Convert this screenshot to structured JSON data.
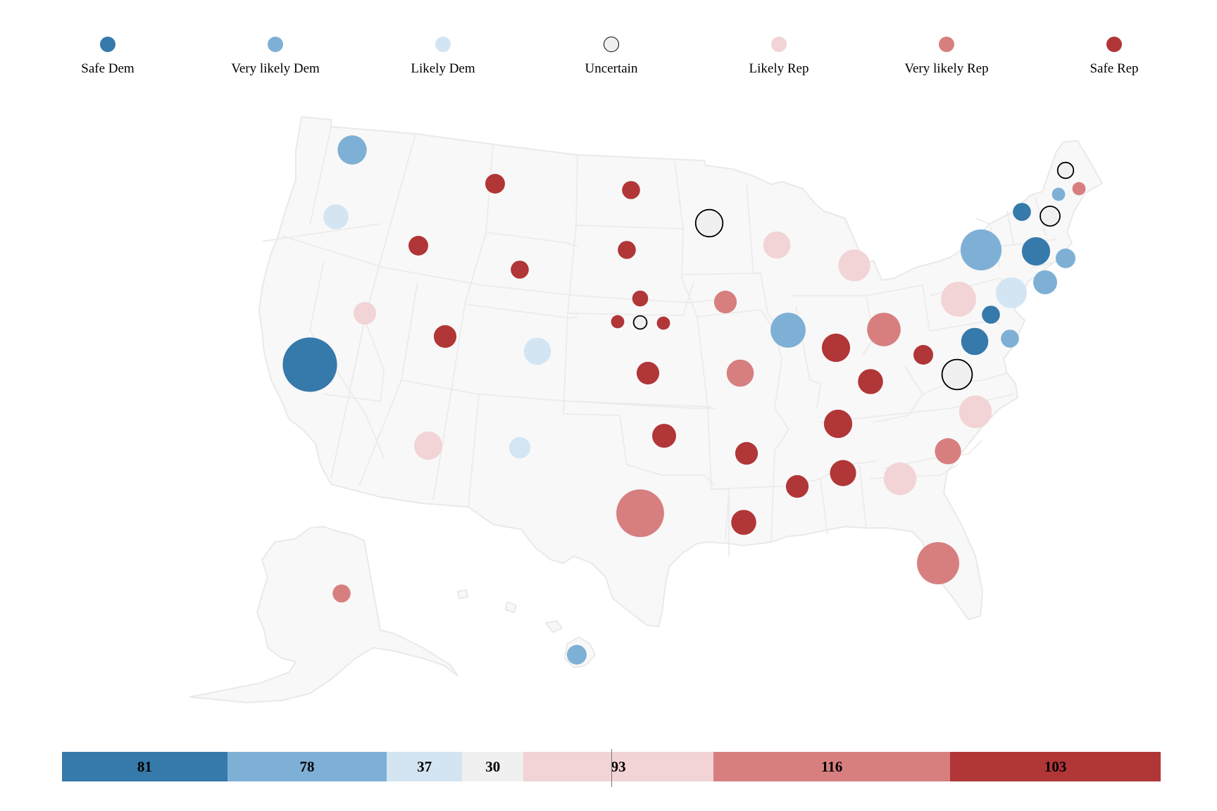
{
  "legend": [
    {
      "key": "safe_dem",
      "label": "Safe Dem",
      "color": "#3679ab"
    },
    {
      "key": "very_likely_dem",
      "label": "Very likely Dem",
      "color": "#7eb0d6"
    },
    {
      "key": "likely_dem",
      "label": "Likely Dem",
      "color": "#d3e5f3"
    },
    {
      "key": "uncertain",
      "label": "Uncertain",
      "color": "#f0f0f0",
      "stroke": "#000000"
    },
    {
      "key": "likely_rep",
      "label": "Likely Rep",
      "color": "#f2d4d6"
    },
    {
      "key": "very_likely_rep",
      "label": "Very likely Rep",
      "color": "#d77f7f"
    },
    {
      "key": "safe_rep",
      "label": "Safe Rep",
      "color": "#b13637"
    }
  ],
  "summary_bar": {
    "segments": [
      {
        "key": "safe_dem",
        "value": 81
      },
      {
        "key": "very_likely_dem",
        "value": 78
      },
      {
        "key": "likely_dem",
        "value": 37
      },
      {
        "key": "uncertain",
        "value": 30
      },
      {
        "key": "likely_rep",
        "value": 93
      },
      {
        "key": "very_likely_rep",
        "value": 116
      },
      {
        "key": "safe_rep",
        "value": 103
      }
    ],
    "total": 538,
    "majority_line": 269
  },
  "chart_data": {
    "type": "map",
    "title": "",
    "encoding": "circle per state/district, sized by electoral votes, colored by rating",
    "states": [
      {
        "id": "WA",
        "rating": "very_likely_dem",
        "ev": 12
      },
      {
        "id": "OR",
        "rating": "likely_dem",
        "ev": 8
      },
      {
        "id": "CA",
        "rating": "safe_dem",
        "ev": 54
      },
      {
        "id": "NV",
        "rating": "likely_rep",
        "ev": 6
      },
      {
        "id": "ID",
        "rating": "safe_rep",
        "ev": 4
      },
      {
        "id": "MT",
        "rating": "safe_rep",
        "ev": 4
      },
      {
        "id": "WY",
        "rating": "safe_rep",
        "ev": 3
      },
      {
        "id": "UT",
        "rating": "safe_rep",
        "ev": 6
      },
      {
        "id": "CO",
        "rating": "likely_dem",
        "ev": 10
      },
      {
        "id": "AZ",
        "rating": "likely_rep",
        "ev": 11
      },
      {
        "id": "NM",
        "rating": "likely_dem",
        "ev": 5
      },
      {
        "id": "ND",
        "rating": "safe_rep",
        "ev": 3
      },
      {
        "id": "SD",
        "rating": "safe_rep",
        "ev": 3
      },
      {
        "id": "NE",
        "rating": "safe_rep",
        "ev": 2
      },
      {
        "id": "NE-1",
        "rating": "safe_rep",
        "ev": 1
      },
      {
        "id": "NE-2",
        "rating": "uncertain",
        "ev": 1
      },
      {
        "id": "NE-3",
        "rating": "safe_rep",
        "ev": 1
      },
      {
        "id": "KS",
        "rating": "safe_rep",
        "ev": 6
      },
      {
        "id": "OK",
        "rating": "safe_rep",
        "ev": 7
      },
      {
        "id": "TX",
        "rating": "very_likely_rep",
        "ev": 40
      },
      {
        "id": "MN",
        "rating": "uncertain",
        "ev": 10
      },
      {
        "id": "IA",
        "rating": "very_likely_rep",
        "ev": 6
      },
      {
        "id": "MO",
        "rating": "very_likely_rep",
        "ev": 10
      },
      {
        "id": "AR",
        "rating": "safe_rep",
        "ev": 6
      },
      {
        "id": "LA",
        "rating": "safe_rep",
        "ev": 8
      },
      {
        "id": "WI",
        "rating": "likely_rep",
        "ev": 10
      },
      {
        "id": "IL",
        "rating": "very_likely_dem",
        "ev": 19
      },
      {
        "id": "MI",
        "rating": "likely_rep",
        "ev": 15
      },
      {
        "id": "IN",
        "rating": "safe_rep",
        "ev": 11
      },
      {
        "id": "OH",
        "rating": "very_likely_rep",
        "ev": 17
      },
      {
        "id": "KY",
        "rating": "safe_rep",
        "ev": 8
      },
      {
        "id": "TN",
        "rating": "safe_rep",
        "ev": 11
      },
      {
        "id": "MS",
        "rating": "safe_rep",
        "ev": 6
      },
      {
        "id": "AL",
        "rating": "safe_rep",
        "ev": 9
      },
      {
        "id": "GA",
        "rating": "likely_rep",
        "ev": 16
      },
      {
        "id": "FL",
        "rating": "very_likely_rep",
        "ev": 30
      },
      {
        "id": "SC",
        "rating": "very_likely_rep",
        "ev": 9
      },
      {
        "id": "NC",
        "rating": "likely_rep",
        "ev": 16
      },
      {
        "id": "VA",
        "rating": "uncertain",
        "ev": 13
      },
      {
        "id": "WV",
        "rating": "safe_rep",
        "ev": 4
      },
      {
        "id": "PA",
        "rating": "likely_rep",
        "ev": 19
      },
      {
        "id": "NY",
        "rating": "very_likely_dem",
        "ev": 28
      },
      {
        "id": "NJ",
        "rating": "likely_dem",
        "ev": 14
      },
      {
        "id": "DE",
        "rating": "very_likely_dem",
        "ev": 3
      },
      {
        "id": "MD",
        "rating": "safe_dem",
        "ev": 10
      },
      {
        "id": "DC",
        "rating": "safe_dem",
        "ev": 3
      },
      {
        "id": "CT",
        "rating": "very_likely_dem",
        "ev": 7
      },
      {
        "id": "RI",
        "rating": "very_likely_dem",
        "ev": 4
      },
      {
        "id": "MA",
        "rating": "safe_dem",
        "ev": 11
      },
      {
        "id": "VT",
        "rating": "safe_dem",
        "ev": 3
      },
      {
        "id": "NH",
        "rating": "uncertain",
        "ev": 4
      },
      {
        "id": "ME",
        "rating": "uncertain",
        "ev": 2
      },
      {
        "id": "ME-1",
        "rating": "very_likely_dem",
        "ev": 1
      },
      {
        "id": "ME-2",
        "rating": "very_likely_rep",
        "ev": 1
      },
      {
        "id": "AK",
        "rating": "very_likely_rep",
        "ev": 3
      },
      {
        "id": "HI",
        "rating": "very_likely_dem",
        "ev": 4
      }
    ]
  }
}
